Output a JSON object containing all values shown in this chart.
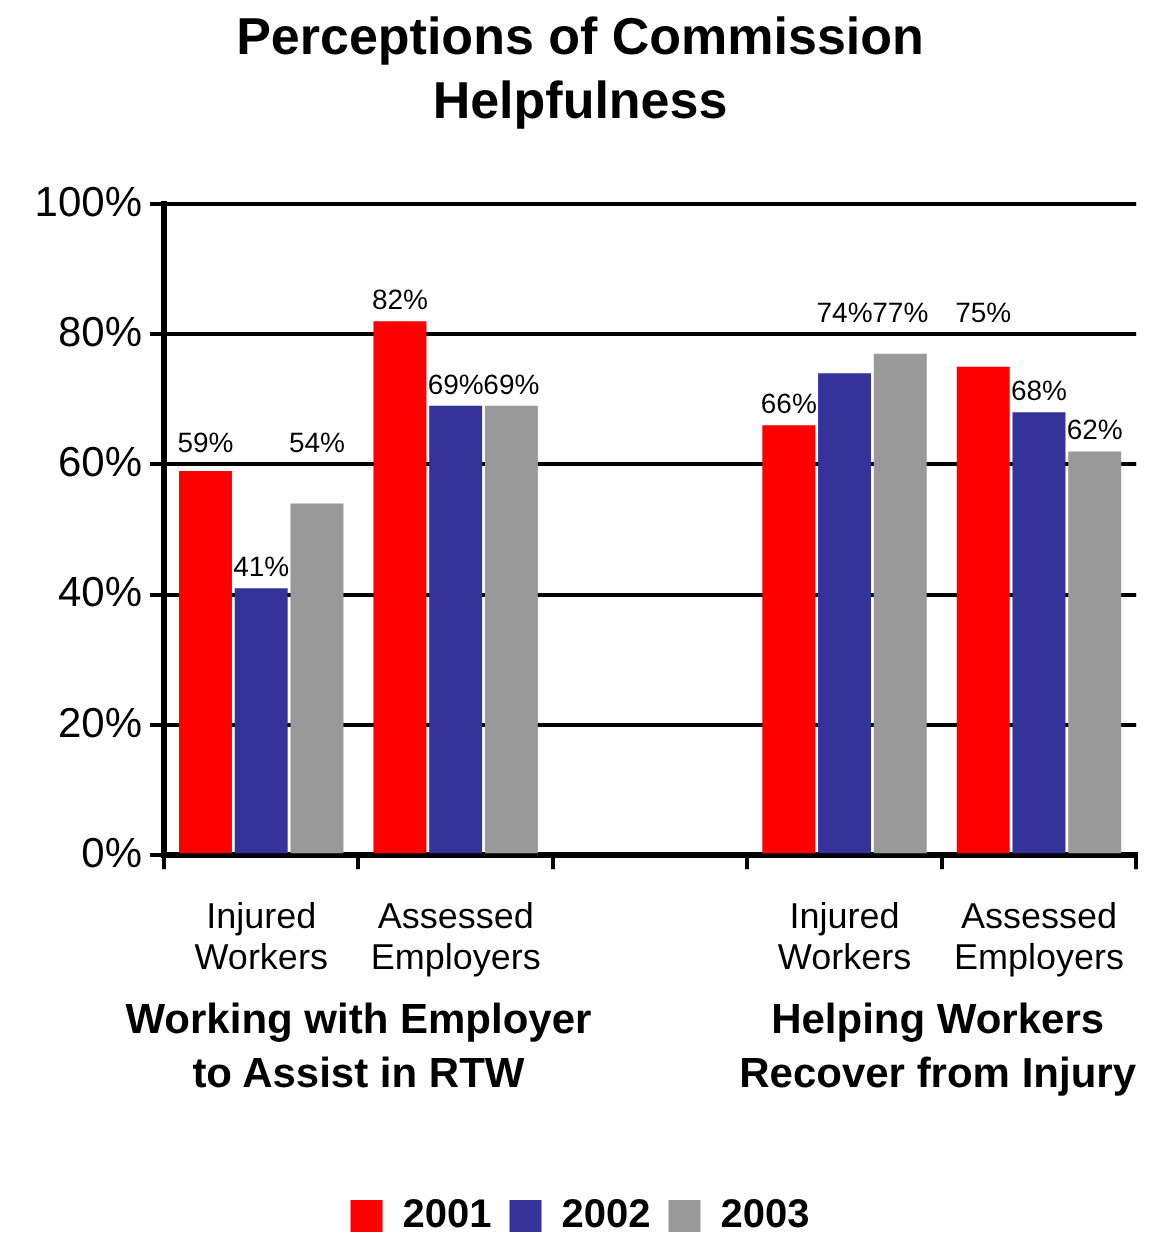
{
  "chart_data": {
    "type": "bar",
    "title": "Perceptions of Commission Helpfulness",
    "categories": [
      "Injured Workers",
      "Assessed Employers",
      null,
      "Injured Workers",
      "Assessed Employers"
    ],
    "series": [
      {
        "name": "2001",
        "color": "#ff0000",
        "values": [
          59,
          82,
          null,
          66,
          75
        ],
        "value_labels": [
          "59%",
          "82%",
          null,
          "66%",
          "75%"
        ]
      },
      {
        "name": "2002",
        "color": "#333399",
        "values": [
          41,
          69,
          null,
          74,
          68
        ],
        "value_labels": [
          "41%",
          "69%",
          null,
          "74%",
          "68%"
        ]
      },
      {
        "name": "2003",
        "color": "#999999",
        "values": [
          54,
          69,
          null,
          77,
          62
        ],
        "value_labels": [
          "54%",
          "69%",
          null,
          "77%",
          "62%"
        ]
      }
    ],
    "ylim": [
      0,
      100
    ],
    "yticks": [
      {
        "value": 0,
        "label": "0%"
      },
      {
        "value": 20,
        "label": "20%"
      },
      {
        "value": 40,
        "label": "40%"
      },
      {
        "value": 60,
        "label": "60%"
      },
      {
        "value": 80,
        "label": "80%"
      },
      {
        "value": 100,
        "label": "100%"
      }
    ],
    "grid": "y",
    "legend": "bottom",
    "annotations": [
      "Working with Employer to Assist in RTW",
      "Helping Workers Recover from Injury"
    ]
  }
}
